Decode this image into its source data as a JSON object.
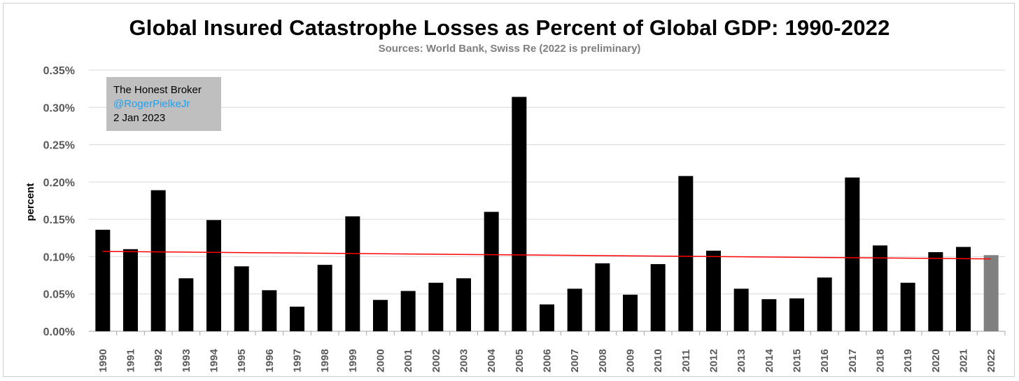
{
  "chart_data": {
    "type": "bar",
    "title": "Global Insured Catastrophe Losses as Percent of Global GDP: 1990-2022",
    "subtitle": "Sources: World Bank, Swiss Re (2022 is preliminary)",
    "xlabel": "",
    "ylabel": "percent",
    "ylim": [
      0,
      0.35
    ],
    "yticks": [
      "0.00%",
      "0.05%",
      "0.10%",
      "0.15%",
      "0.20%",
      "0.25%",
      "0.30%",
      "0.35%"
    ],
    "ytick_values": [
      0,
      0.05,
      0.1,
      0.15,
      0.2,
      0.25,
      0.3,
      0.35
    ],
    "grid": "horizontal",
    "categories": [
      "1990",
      "1991",
      "1992",
      "1993",
      "1994",
      "1995",
      "1996",
      "1997",
      "1998",
      "1999",
      "2000",
      "2001",
      "2002",
      "2003",
      "2004",
      "2005",
      "2006",
      "2007",
      "2008",
      "2009",
      "2010",
      "2011",
      "2012",
      "2013",
      "2014",
      "2015",
      "2016",
      "2017",
      "2018",
      "2019",
      "2020",
      "2021",
      "2022"
    ],
    "values": [
      0.136,
      0.11,
      0.189,
      0.071,
      0.149,
      0.087,
      0.055,
      0.033,
      0.089,
      0.154,
      0.042,
      0.054,
      0.065,
      0.071,
      0.16,
      0.314,
      0.036,
      0.057,
      0.091,
      0.049,
      0.09,
      0.208,
      0.108,
      0.057,
      0.043,
      0.044,
      0.072,
      0.206,
      0.115,
      0.065,
      0.106,
      0.113,
      0.102
    ],
    "bar_color": "#000000",
    "preliminary_bar_color": "#808080",
    "trendline": {
      "color": "#ff0000",
      "start": 0.107,
      "end": 0.097
    }
  },
  "watermark": {
    "line1": "The Honest Broker",
    "line2": "@RogerPielkeJr",
    "line3": "2 Jan 2023"
  }
}
